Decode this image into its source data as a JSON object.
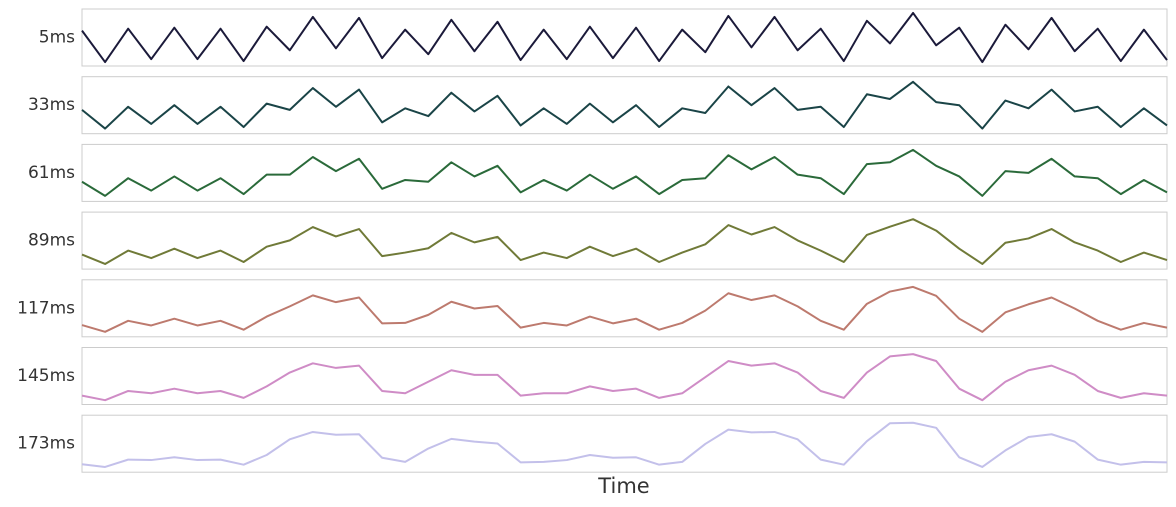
{
  "chart_data": {
    "type": "line",
    "xlabel": "Time",
    "series": [
      {
        "name": "5ms",
        "color": "#1b1a3a",
        "ylim": [
          -9,
          18
        ],
        "values": [
          8,
          -8,
          9,
          -6.5,
          9.5,
          -6.5,
          9,
          -7.5,
          10,
          -2,
          15,
          -1,
          14.5,
          -6,
          8.5,
          -4,
          13.5,
          -2.5,
          12.5,
          -7,
          8.5,
          -6.5,
          10,
          -6,
          9.5,
          -7.5,
          8.5,
          -3,
          15.5,
          -0.5,
          15,
          -2,
          9,
          -7.5,
          13,
          1.5,
          17,
          0.5,
          9.5,
          -8,
          11,
          -1.5,
          14.5,
          -2.5,
          9,
          -7.5,
          8.5,
          -7
        ]
      },
      {
        "name": "33ms",
        "color": "#1a4447",
        "ylim": [
          -4,
          13
        ],
        "values": [
          3,
          -3,
          4,
          -1.5,
          4.5,
          -1.5,
          4,
          -2.5,
          5,
          3,
          10,
          4,
          9.5,
          -1,
          3.5,
          1,
          8.5,
          2.5,
          7.5,
          -2,
          3.5,
          -1.5,
          5,
          -1,
          4.5,
          -2.5,
          3.5,
          2,
          10.5,
          4.5,
          10,
          3,
          4,
          -2.5,
          8,
          6.5,
          12,
          5.5,
          4.5,
          -3,
          6,
          3.5,
          9.5,
          2.5,
          4,
          -2.5,
          3.5,
          -2
        ]
      },
      {
        "name": "61ms",
        "color": "#2a6a3a",
        "ylim": [
          -3,
          12
        ],
        "values": [
          2,
          -2,
          3,
          -0.5,
          3.5,
          -0.5,
          3,
          -1.5,
          4,
          4,
          9,
          5,
          8.5,
          0,
          2.5,
          2,
          7.5,
          3.5,
          6.5,
          -1,
          2.5,
          -0.5,
          4,
          0,
          3.5,
          -1.5,
          2.5,
          3,
          9.5,
          5.5,
          9,
          4,
          3,
          -1.5,
          7,
          7.5,
          11,
          6.5,
          3.5,
          -2,
          5,
          4.5,
          8.5,
          3.5,
          3,
          -1.5,
          2.5,
          -1
        ]
      },
      {
        "name": "89ms",
        "color": "#707a38",
        "ylim": [
          -2,
          11.5
        ],
        "values": [
          1.2,
          -1.2,
          2.2,
          0.3,
          2.7,
          0.3,
          2.2,
          -0.7,
          3.2,
          4.8,
          8.2,
          5.8,
          7.7,
          0.8,
          1.7,
          2.8,
          6.7,
          4.3,
          5.7,
          -0.2,
          1.7,
          0.3,
          3.2,
          0.8,
          2.7,
          -0.7,
          1.7,
          3.8,
          8.7,
          6.3,
          8.2,
          4.8,
          2.2,
          -0.7,
          6.2,
          8.3,
          10.2,
          7.3,
          2.7,
          -1.2,
          4.2,
          5.3,
          7.7,
          4.3,
          2.2,
          -0.7,
          1.7,
          -0.2
        ]
      },
      {
        "name": "117ms",
        "color": "#bd7a6e",
        "ylim": [
          -1.5,
          11
        ],
        "values": [
          0.8,
          -0.8,
          1.8,
          0.7,
          2.3,
          0.7,
          1.8,
          -0.3,
          2.8,
          5.2,
          7.8,
          6.2,
          7.3,
          1.2,
          1.3,
          3.2,
          6.3,
          4.7,
          5.3,
          0.2,
          1.3,
          0.7,
          2.8,
          1.2,
          2.3,
          -0.3,
          1.3,
          4.2,
          8.3,
          6.7,
          7.8,
          5.2,
          1.8,
          -0.3,
          5.8,
          8.7,
          9.8,
          7.7,
          2.3,
          -0.8,
          3.8,
          5.7,
          7.3,
          4.7,
          1.8,
          -0.3,
          1.3,
          0.2
        ]
      },
      {
        "name": "145ms",
        "color": "#cf8cc6",
        "ylim": [
          -1,
          10.5
        ],
        "values": [
          0.5,
          -0.5,
          1.5,
          1,
          2,
          1,
          1.5,
          0,
          2.5,
          5.5,
          7.5,
          6.5,
          7,
          1.5,
          1,
          3.5,
          6,
          5,
          5,
          0.5,
          1,
          1,
          2.5,
          1.5,
          2,
          0,
          1,
          4.5,
          8,
          7,
          7.5,
          5.5,
          1.5,
          0,
          5.5,
          9,
          9.5,
          8,
          2,
          -0.5,
          3.5,
          6,
          7,
          5,
          1.5,
          0,
          1,
          0.5
        ]
      },
      {
        "name": "173ms",
        "color": "#c3c0ea",
        "ylim": [
          -1,
          10.5
        ],
        "values": [
          0.3,
          -0.3,
          1.3,
          1.2,
          1.8,
          1.2,
          1.3,
          0.2,
          2.3,
          5.7,
          7.3,
          6.7,
          6.8,
          1.7,
          0.8,
          3.7,
          5.8,
          5.2,
          4.8,
          0.7,
          0.8,
          1.2,
          2.3,
          1.7,
          1.8,
          0.2,
          0.8,
          4.7,
          7.8,
          7.2,
          7.3,
          5.7,
          1.3,
          0.2,
          5.3,
          9.2,
          9.3,
          8.2,
          1.8,
          -0.3,
          3.3,
          6.2,
          6.8,
          5.2,
          1.3,
          0.2,
          0.8,
          0.7
        ]
      }
    ]
  }
}
